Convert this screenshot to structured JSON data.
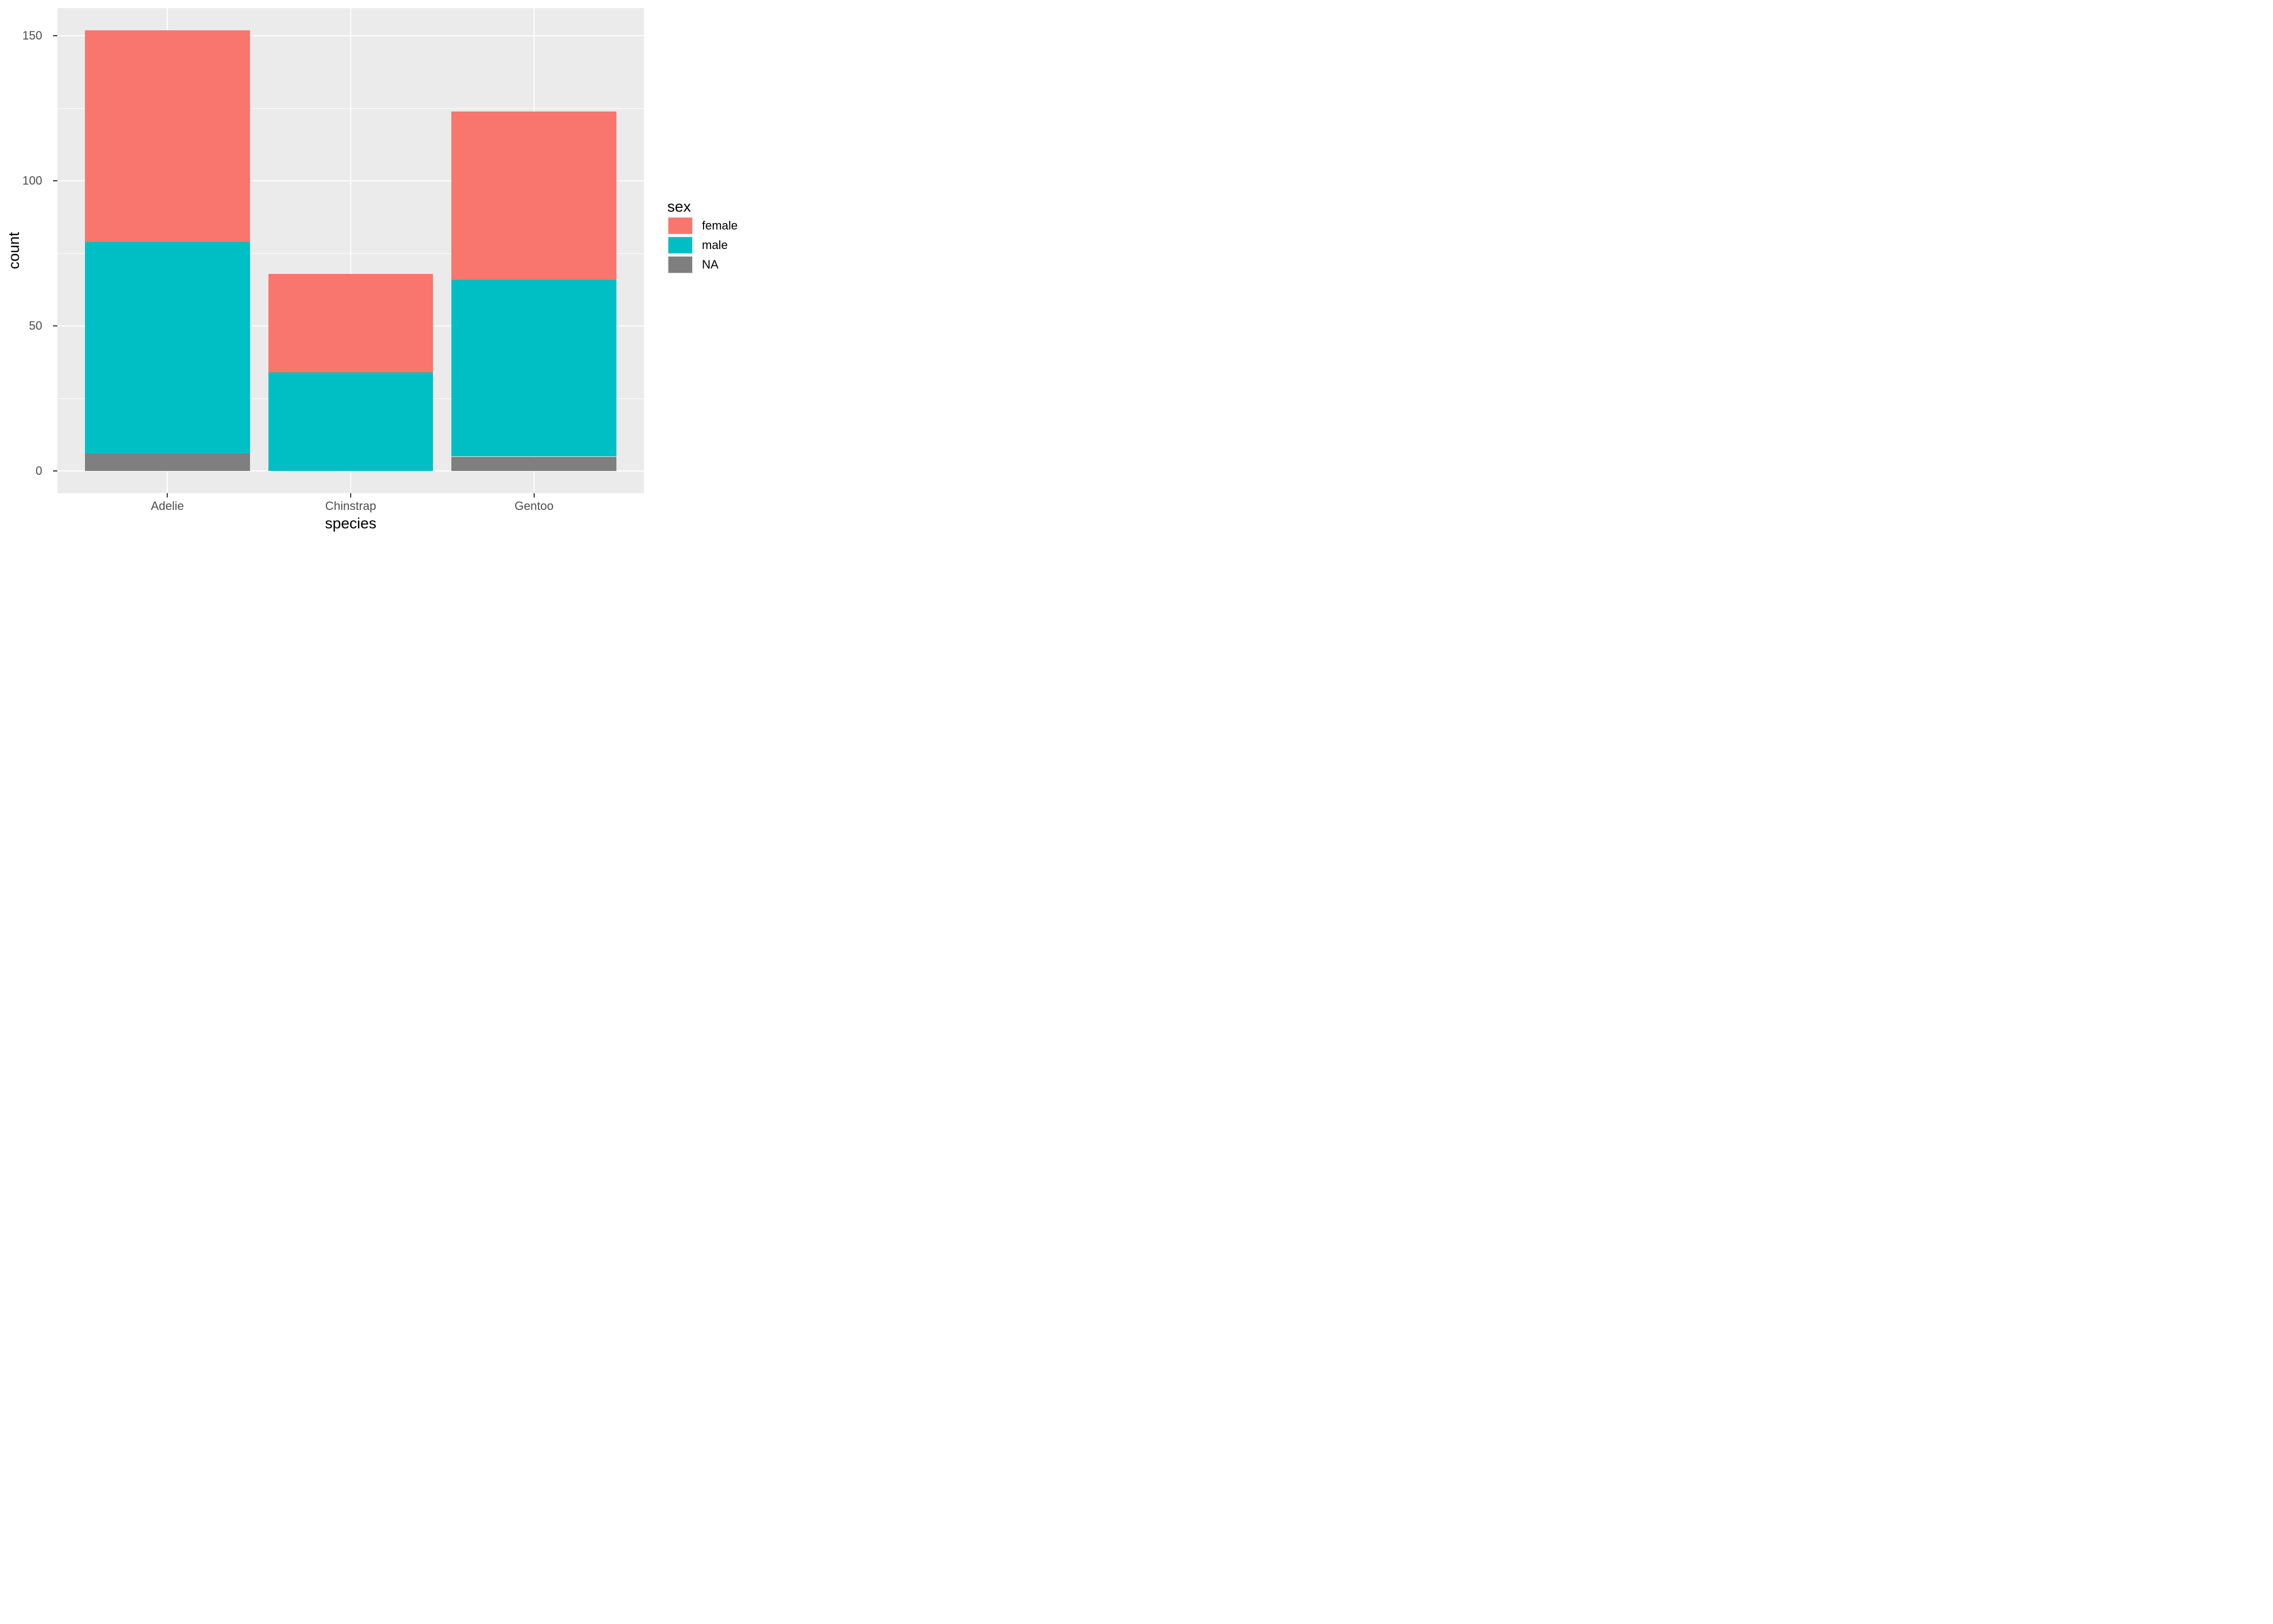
{
  "figure": {
    "background": "#FFFFFF",
    "panel_background": "#EBEBEB",
    "gridline_color": "#FFFFFF",
    "tick_mark_color": "#333333",
    "tick_label_color": "#4D4D4D",
    "title_text_color": "#000000"
  },
  "chart_data": {
    "type": "bar",
    "stacked": true,
    "title": "",
    "xlabel": "species",
    "ylabel": "count",
    "categories": [
      "Adelie",
      "Chinstrap",
      "Gentoo"
    ],
    "series": [
      {
        "name": "female",
        "color": "#F8766D",
        "values": [
          73,
          34,
          58
        ]
      },
      {
        "name": "male",
        "color": "#00BFC4",
        "values": [
          73,
          34,
          61
        ]
      },
      {
        "name": "NA",
        "color": "#7F7F7F",
        "values": [
          6,
          0,
          5
        ]
      }
    ],
    "stack_order_bottom_to_top": [
      "NA",
      "male",
      "female"
    ],
    "totals": [
      152,
      68,
      124
    ],
    "y_axis": {
      "ticks": [
        0,
        50,
        100,
        150
      ],
      "tick_labels": [
        "0",
        "50",
        "100",
        "150"
      ],
      "minor_ticks": [
        25,
        75,
        125
      ],
      "range": [
        -7.6,
        159.6
      ],
      "data_limits": [
        0,
        152
      ]
    },
    "x_axis": {
      "range": [
        0.4,
        3.6
      ],
      "category_positions": [
        1,
        2,
        3
      ],
      "bar_width": 0.9
    },
    "legend": {
      "title": "sex",
      "position": "right",
      "key_background": "#F0F0F0",
      "entries": [
        {
          "label": "female",
          "color": "#F8766D"
        },
        {
          "label": "male",
          "color": "#00BFC4"
        },
        {
          "label": "NA",
          "color": "#7F7F7F"
        }
      ]
    },
    "grid": {
      "major": true,
      "minor": true
    }
  }
}
